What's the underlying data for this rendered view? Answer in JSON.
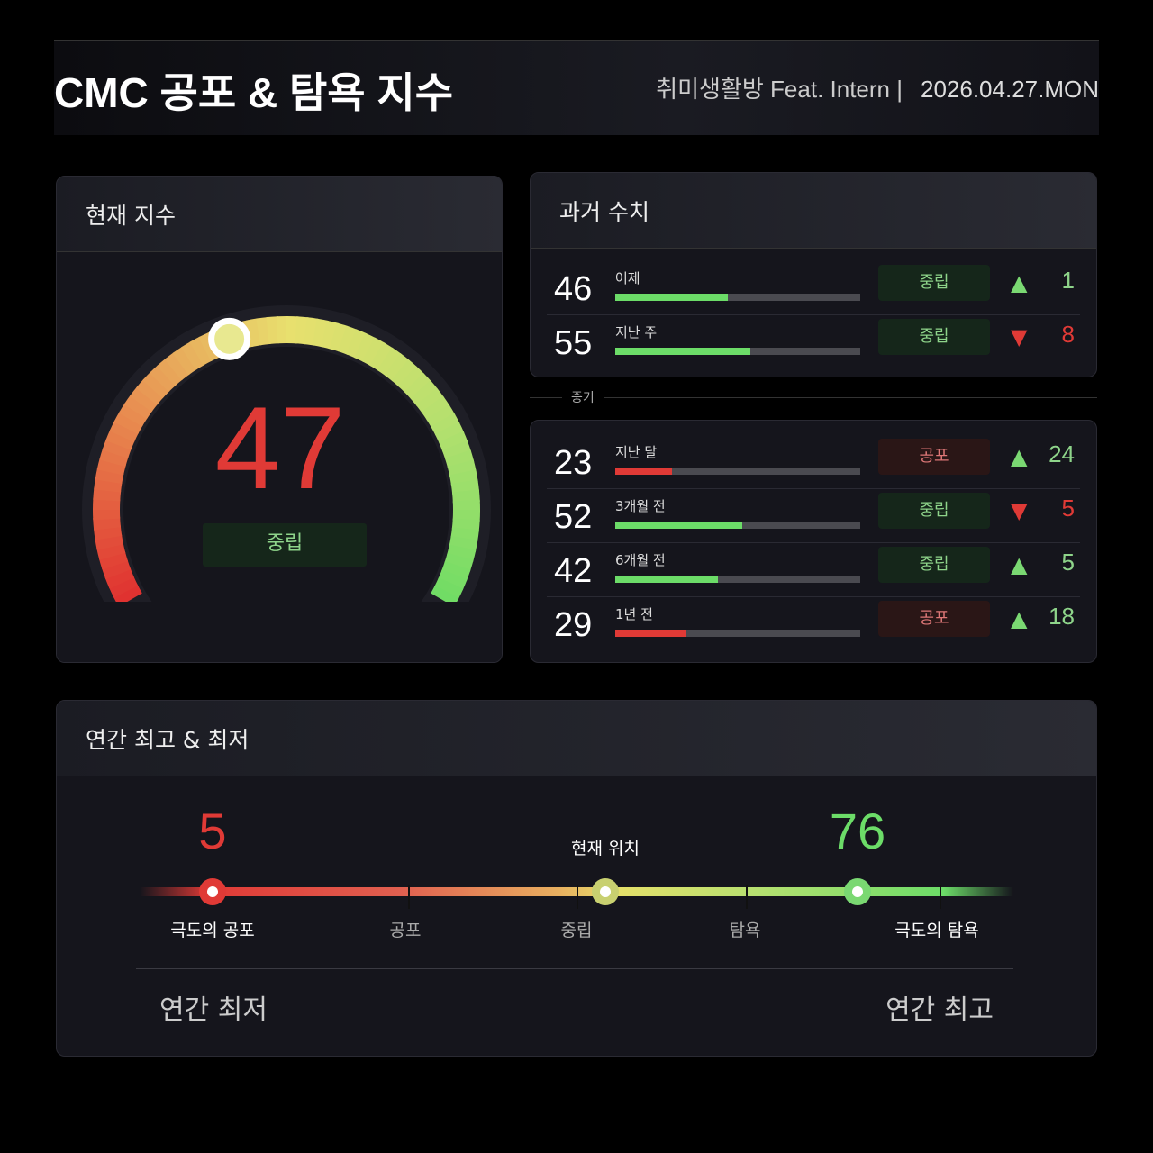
{
  "header": {
    "title": "CMC 공포 & 탐욕 지수",
    "source": "취미생활방 Feat. Intern |",
    "date": "2026.04.27.MON"
  },
  "current": {
    "title": "현재 지수",
    "value": 47,
    "status": "중립"
  },
  "history": {
    "title": "과거 수치",
    "section_label": "중기",
    "short": [
      {
        "value": "46",
        "label": "어제",
        "status": "중립",
        "type": "neutral",
        "direction": "up",
        "change": "1"
      },
      {
        "value": "55",
        "label": "지난 주",
        "status": "중립",
        "type": "neutral",
        "direction": "down",
        "change": "8"
      }
    ],
    "mid": [
      {
        "value": "23",
        "label": "지난 달",
        "status": "공포",
        "type": "fear",
        "direction": "up",
        "change": "24"
      },
      {
        "value": "52",
        "label": "3개월 전",
        "status": "중립",
        "type": "neutral",
        "direction": "down",
        "change": "5"
      },
      {
        "value": "42",
        "label": "6개월 전",
        "status": "중립",
        "type": "neutral",
        "direction": "up",
        "change": "5"
      },
      {
        "value": "29",
        "label": "1년 전",
        "status": "공포",
        "type": "fear",
        "direction": "up",
        "change": "18"
      }
    ]
  },
  "yearly": {
    "title": "연간 최고 & 최저",
    "low": "5",
    "high": "76",
    "current_label": "현재 위치",
    "scale": [
      "극도의 공포",
      "공포",
      "중립",
      "탐욕",
      "극도의 탐욕"
    ],
    "low_label": "연간 최저",
    "high_label": "연간 최고"
  },
  "colors": {
    "fear": "#e03a36",
    "neutral_green": "#6cdc68",
    "neutral_yellow": "#e4e06a"
  }
}
